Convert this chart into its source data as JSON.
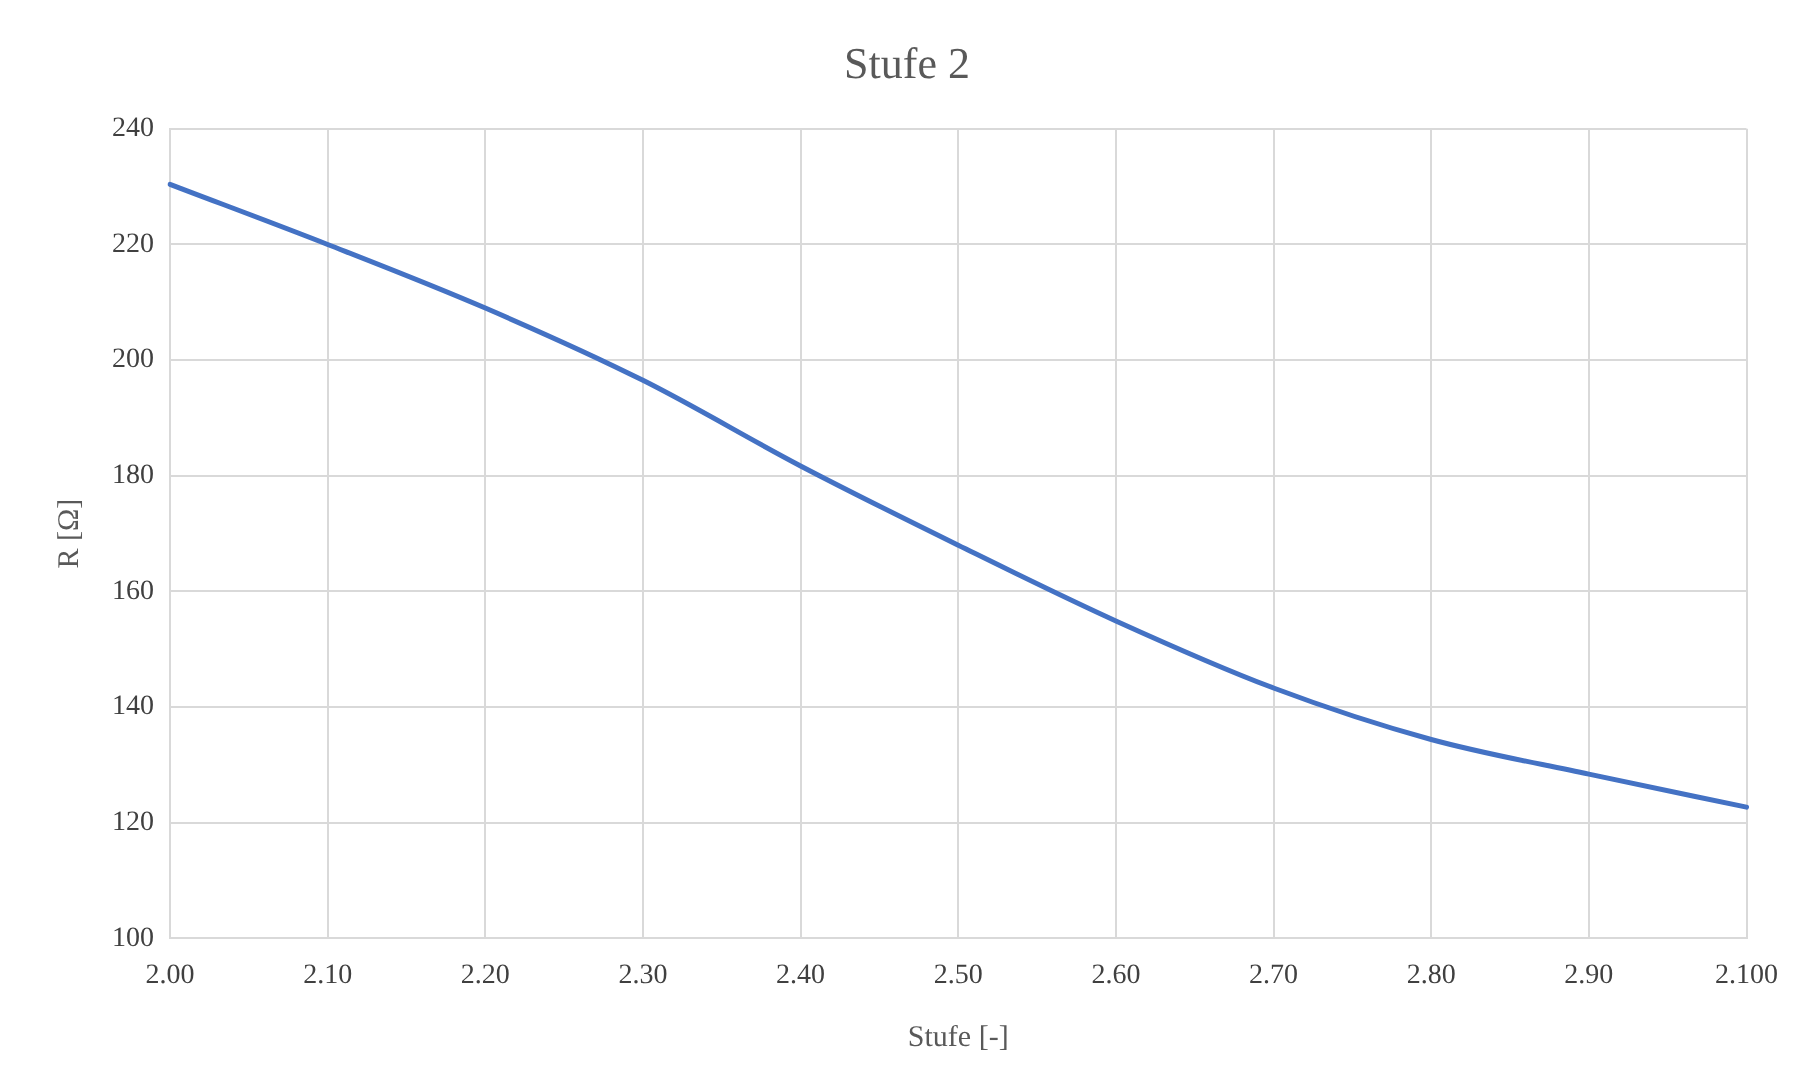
{
  "chart_data": {
    "type": "line",
    "title": "Stufe 2",
    "xlabel": "Stufe [-]",
    "ylabel": "R [Ω]",
    "categories": [
      "2.00",
      "2.10",
      "2.20",
      "2.30",
      "2.40",
      "2.50",
      "2.60",
      "2.70",
      "2.80",
      "2.90",
      "2.100"
    ],
    "series": [
      {
        "color": "#4472c4",
        "values": [
          230.4,
          220,
          209,
          196.5,
          181.7,
          168,
          154.9,
          143.3,
          134.4,
          128.4,
          122.7
        ]
      }
    ],
    "ylim": [
      100,
      240
    ],
    "yticks": [
      100,
      120,
      140,
      160,
      180,
      200,
      220,
      240
    ],
    "grid": true,
    "legend": false,
    "marker": "none",
    "line_style": "solid"
  }
}
